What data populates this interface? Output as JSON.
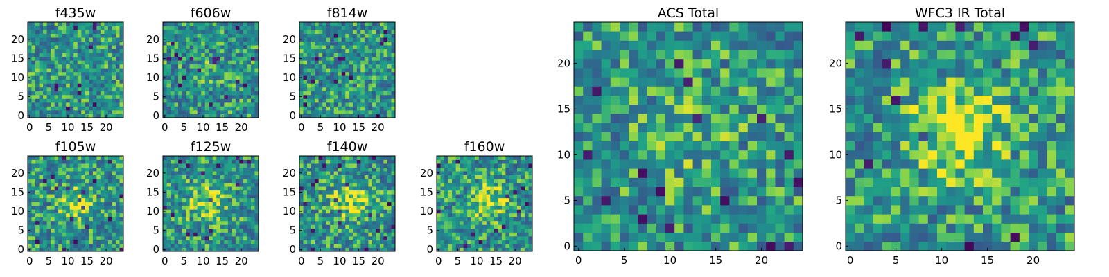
{
  "chart_data": [
    {
      "type": "heatmap",
      "title": "f435w",
      "x_ticks": [
        "0",
        "5",
        "10",
        "15",
        "20"
      ],
      "y_ticks": [
        "0",
        "5",
        "10",
        "15",
        "20"
      ],
      "xlim": [
        0,
        25
      ],
      "ylim": [
        0,
        25
      ],
      "colormap": "viridis",
      "description_values": "25x25 noise image, no central source",
      "grid": false
    },
    {
      "type": "heatmap",
      "title": "f606w",
      "x_ticks": [
        "0",
        "5",
        "10",
        "15",
        "20"
      ],
      "y_ticks": [
        "0",
        "5",
        "10",
        "15",
        "20"
      ],
      "xlim": [
        0,
        25
      ],
      "ylim": [
        0,
        25
      ],
      "colormap": "viridis",
      "description_values": "25x25 noise image, faint source near (12,12)",
      "grid": false
    },
    {
      "type": "heatmap",
      "title": "f814w",
      "x_ticks": [
        "0",
        "5",
        "10",
        "15",
        "20"
      ],
      "y_ticks": [
        "0",
        "5",
        "10",
        "15",
        "20"
      ],
      "xlim": [
        0,
        25
      ],
      "ylim": [
        0,
        25
      ],
      "colormap": "viridis",
      "description_values": "25x25 noise image",
      "grid": false
    },
    {
      "type": "heatmap",
      "title": "f105w",
      "x_ticks": [
        "0",
        "5",
        "10",
        "15",
        "20"
      ],
      "y_ticks": [
        "0",
        "5",
        "10",
        "15",
        "20"
      ],
      "xlim": [
        0,
        25
      ],
      "ylim": [
        0,
        25
      ],
      "colormap": "viridis",
      "description_values": "25x25 image, bright source near (12,12)",
      "grid": false
    },
    {
      "type": "heatmap",
      "title": "f125w",
      "x_ticks": [
        "0",
        "5",
        "10",
        "15",
        "20"
      ],
      "y_ticks": [
        "0",
        "5",
        "10",
        "15",
        "20"
      ],
      "xlim": [
        0,
        25
      ],
      "ylim": [
        0,
        25
      ],
      "colormap": "viridis",
      "description_values": "25x25 image, bright source near (12,12)",
      "grid": false
    },
    {
      "type": "heatmap",
      "title": "f140w",
      "x_ticks": [
        "0",
        "5",
        "10",
        "15",
        "20"
      ],
      "y_ticks": [
        "0",
        "5",
        "10",
        "15",
        "20"
      ],
      "xlim": [
        0,
        25
      ],
      "ylim": [
        0,
        25
      ],
      "colormap": "viridis",
      "description_values": "25x25 image, bright source near (13,13)",
      "grid": false
    },
    {
      "type": "heatmap",
      "title": "f160w",
      "x_ticks": [
        "0",
        "5",
        "10",
        "15",
        "20"
      ],
      "y_ticks": [
        "0",
        "5",
        "10",
        "15",
        "20"
      ],
      "xlim": [
        0,
        25
      ],
      "ylim": [
        0,
        25
      ],
      "colormap": "viridis",
      "description_values": "25x25 image, bright source near (13,13)",
      "grid": false
    },
    {
      "type": "heatmap",
      "title": "ACS Total",
      "x_ticks": [
        "0",
        "5",
        "10",
        "15",
        "20"
      ],
      "y_ticks": [
        "0",
        "5",
        "10",
        "15",
        "20"
      ],
      "xlim": [
        0,
        25
      ],
      "ylim": [
        0,
        25
      ],
      "colormap": "viridis",
      "description_values": "25x25 stacked ACS image",
      "grid": false
    },
    {
      "type": "heatmap",
      "title": "WFC3 IR Total",
      "x_ticks": [
        "0",
        "5",
        "10",
        "15",
        "20"
      ],
      "y_ticks": [
        "0",
        "5",
        "10",
        "15",
        "20"
      ],
      "xlim": [
        0,
        25
      ],
      "ylim": [
        0,
        25
      ],
      "colormap": "viridis",
      "description_values": "25x25 stacked IR image, bright source near (12,13)",
      "grid": false
    }
  ]
}
